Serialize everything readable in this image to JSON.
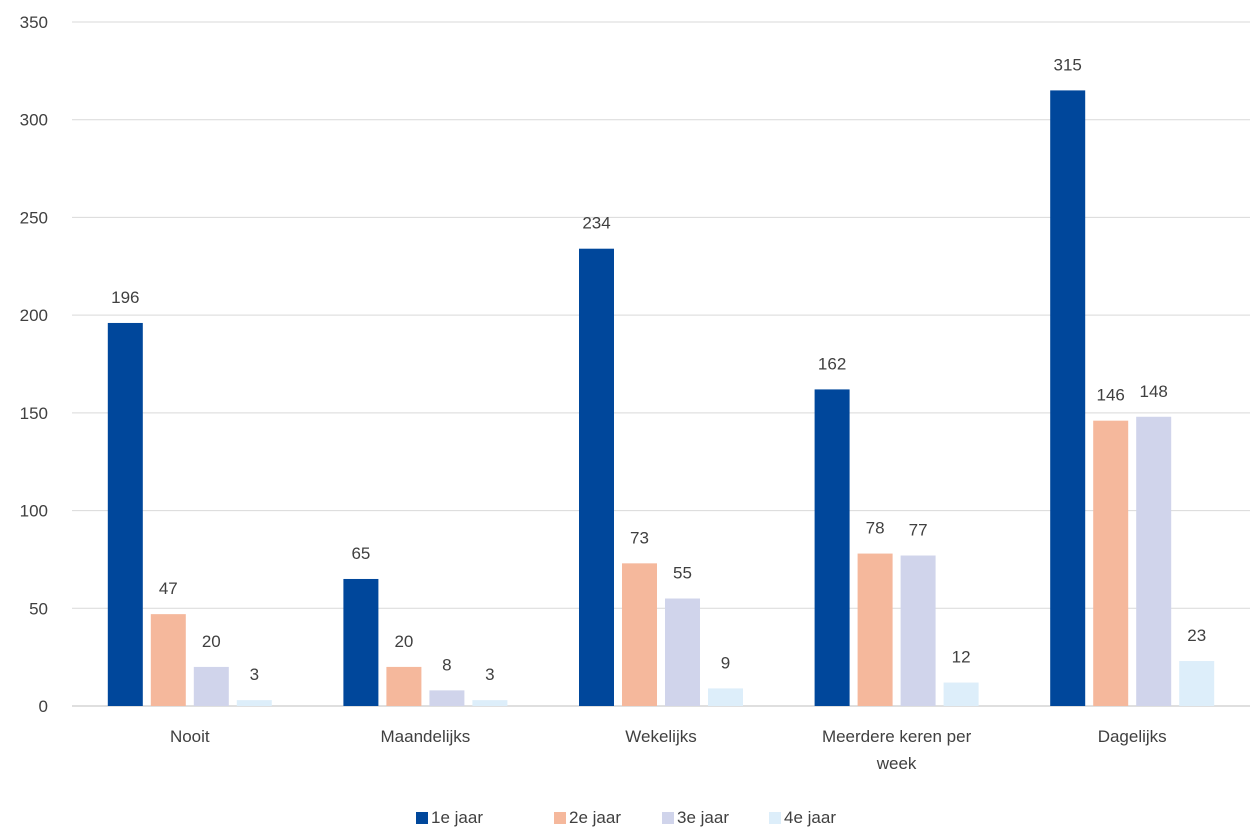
{
  "chart_data": {
    "type": "bar",
    "title": "",
    "xlabel": "",
    "ylabel": "",
    "categories": [
      "Nooit",
      "Maandelijks",
      "Wekelijks",
      "Meerdere keren per week",
      "Dagelijks"
    ],
    "category_lines": [
      [
        "Nooit"
      ],
      [
        "Maandelijks"
      ],
      [
        "Wekelijks"
      ],
      [
        "Meerdere keren per",
        "week"
      ],
      [
        "Dagelijks"
      ]
    ],
    "series": [
      {
        "name": "1e jaar",
        "color": "#00479b",
        "values": [
          196,
          65,
          234,
          162,
          315
        ]
      },
      {
        "name": "2e jaar",
        "color": "#f5b89c",
        "values": [
          47,
          20,
          73,
          78,
          146
        ]
      },
      {
        "name": "3e jaar",
        "color": "#d0d4eb",
        "values": [
          20,
          8,
          55,
          77,
          148
        ]
      },
      {
        "name": "4e jaar",
        "color": "#ddeefa",
        "values": [
          3,
          3,
          9,
          12,
          23
        ]
      }
    ],
    "ylim": [
      0,
      350
    ],
    "yticks": [
      0,
      50,
      100,
      150,
      200,
      250,
      300,
      350
    ],
    "grid": true,
    "legend": "bottom",
    "data_labels": true
  }
}
